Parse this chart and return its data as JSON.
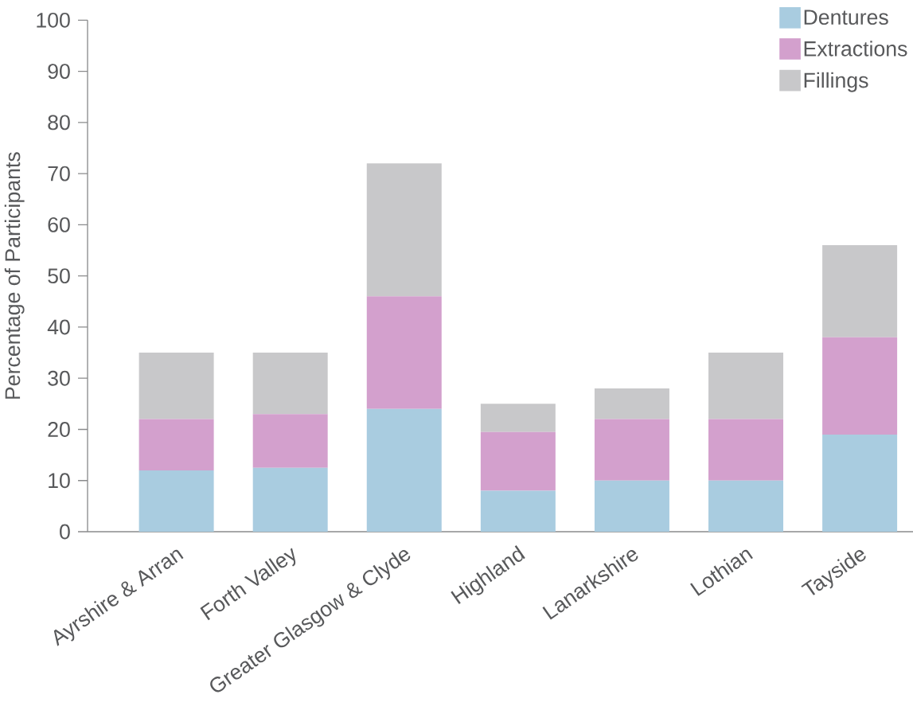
{
  "chart_data": {
    "type": "bar",
    "stacked": true,
    "ylabel": "Percentage of  Participants",
    "categories": [
      "Ayrshire & Arran",
      "Forth Valley",
      "Greater Glasgow & Clyde",
      "Highland",
      "Lanarkshire",
      "Lothian",
      "Tayside"
    ],
    "series": [
      {
        "name": "Dentures",
        "color": "#a9cce0",
        "values": [
          12,
          12.5,
          24,
          8,
          10,
          10,
          19
        ]
      },
      {
        "name": "Extractions",
        "color": "#d3a0cd",
        "values": [
          10,
          10.5,
          22,
          11.5,
          12,
          12,
          19
        ]
      },
      {
        "name": "Fillings",
        "color": "#c8c8ca",
        "values": [
          13,
          12,
          26,
          5.5,
          6,
          13,
          18
        ]
      }
    ],
    "ylim": [
      0,
      100
    ],
    "yticks": [
      0,
      10,
      20,
      30,
      40,
      50,
      60,
      70,
      80,
      90,
      100
    ],
    "legend": "top right",
    "grid": false
  }
}
